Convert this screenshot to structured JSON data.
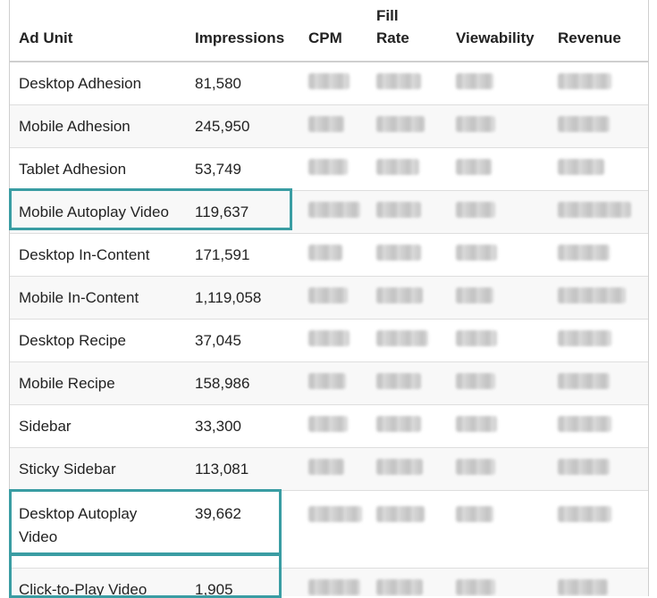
{
  "table": {
    "headers": {
      "ad_unit": "Ad Unit",
      "impressions": "Impressions",
      "cpm": "CPM",
      "fill_rate": "Fill Rate",
      "viewability": "Viewability",
      "revenue": "Revenue"
    },
    "rows": [
      {
        "ad_unit": "Desktop Adhesion",
        "impressions": "81,580"
      },
      {
        "ad_unit": "Mobile Adhesion",
        "impressions": "245,950"
      },
      {
        "ad_unit": "Tablet Adhesion",
        "impressions": "53,749"
      },
      {
        "ad_unit": "Mobile Autoplay Video",
        "impressions": "119,637",
        "highlighted": true
      },
      {
        "ad_unit": "Desktop In-Content",
        "impressions": "171,591"
      },
      {
        "ad_unit": "Mobile In-Content",
        "impressions": "1,119,058"
      },
      {
        "ad_unit": "Desktop Recipe",
        "impressions": "37,045"
      },
      {
        "ad_unit": "Mobile Recipe",
        "impressions": "158,986"
      },
      {
        "ad_unit": "Sidebar",
        "impressions": "33,300"
      },
      {
        "ad_unit": "Sticky Sidebar",
        "impressions": "113,081"
      },
      {
        "ad_unit": "Desktop Autoplay Video",
        "impressions": "39,662",
        "highlighted": true
      },
      {
        "ad_unit": "Click-to-Play Video",
        "impressions": "1,905",
        "highlighted": true
      }
    ],
    "redacted_columns": [
      "cpm",
      "fill_rate",
      "viewability",
      "revenue"
    ]
  },
  "colors": {
    "highlight": "#3a9da3",
    "zebra": "#f8f8f8",
    "border": "#dedede"
  }
}
